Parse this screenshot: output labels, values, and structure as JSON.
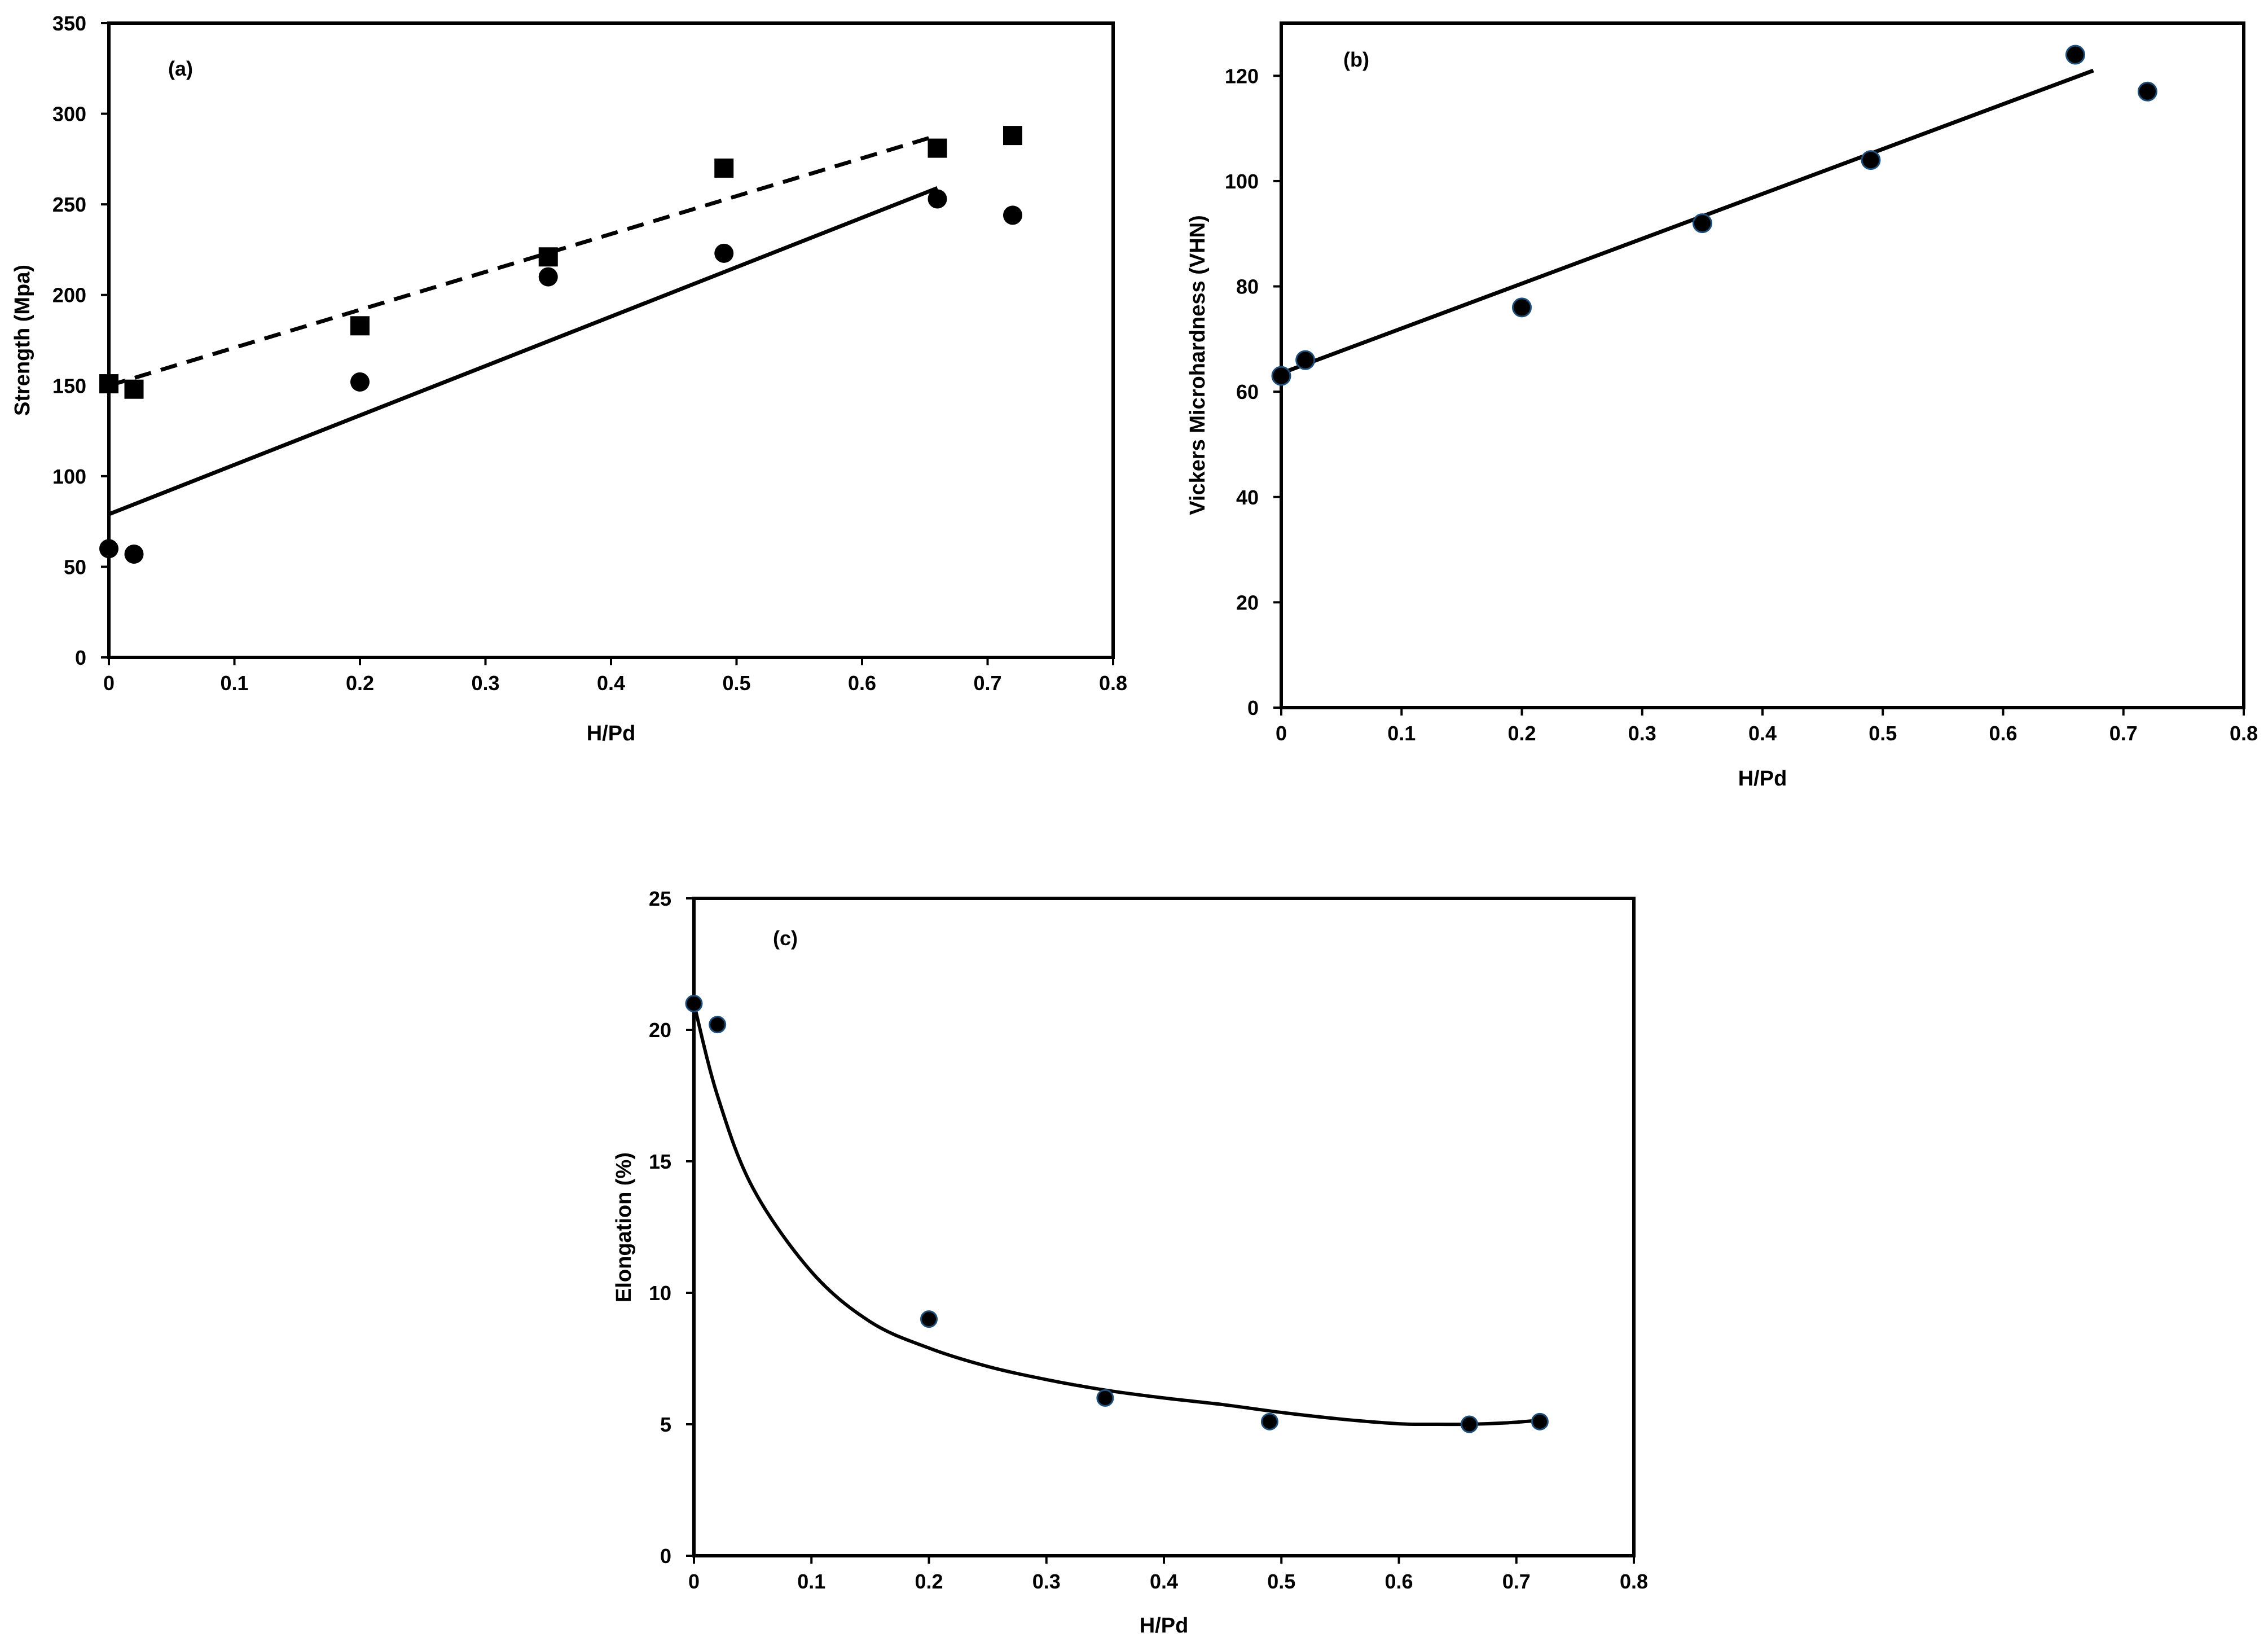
{
  "chart_data": [
    {
      "type": "scatter",
      "panel_label": "(a)",
      "xlabel": "H/Pd",
      "ylabel": "Strength (Mpa)",
      "xlim": [
        0,
        0.8
      ],
      "ylim": [
        0,
        350
      ],
      "x_ticks": [
        "0",
        "0.1",
        "0.2",
        "0.3",
        "0.4",
        "0.5",
        "0.6",
        "0.7",
        "0.8"
      ],
      "y_ticks": [
        "0",
        "50",
        "100",
        "150",
        "200",
        "250",
        "300",
        "350"
      ],
      "grid": false,
      "series": [
        {
          "marker": "square",
          "color": "#000000",
          "x": [
            0,
            0.02,
            0.2,
            0.35,
            0.49,
            0.66,
            0.72
          ],
          "y": [
            151,
            148,
            183,
            221,
            270,
            281,
            288
          ]
        },
        {
          "marker": "circle",
          "color": "#000000",
          "x": [
            0,
            0.02,
            0.2,
            0.35,
            0.49,
            0.66,
            0.72
          ],
          "y": [
            60,
            57,
            152,
            210,
            223,
            253,
            244
          ]
        }
      ],
      "trendlines": [
        {
          "style": "dashed",
          "x": [
            0,
            0.66
          ],
          "y": [
            150,
            288
          ]
        },
        {
          "style": "solid",
          "x": [
            0,
            0.66
          ],
          "y": [
            79,
            259
          ]
        }
      ]
    },
    {
      "type": "scatter",
      "panel_label": "(b)",
      "xlabel": "H/Pd",
      "ylabel": "Vickers Microhardness (VHN)",
      "xlim": [
        0,
        0.8
      ],
      "ylim": [
        0,
        130
      ],
      "x_ticks": [
        "0",
        "0.1",
        "0.2",
        "0.3",
        "0.4",
        "0.5",
        "0.6",
        "0.7",
        "0.8"
      ],
      "y_ticks": [
        "0",
        "20",
        "40",
        "60",
        "80",
        "100",
        "120"
      ],
      "grid": false,
      "series": [
        {
          "marker": "circle",
          "color": "#000000",
          "edge_color": "#1f4e79",
          "x": [
            0,
            0.02,
            0.2,
            0.35,
            0.49,
            0.66,
            0.72
          ],
          "y": [
            63,
            66,
            76,
            92,
            104,
            124,
            117
          ]
        }
      ],
      "trendlines": [
        {
          "style": "solid",
          "x": [
            0,
            0.675
          ],
          "y": [
            63.5,
            121
          ]
        }
      ]
    },
    {
      "type": "scatter",
      "panel_label": "(c)",
      "xlabel": "H/Pd",
      "ylabel": "Elongation (%)",
      "xlim": [
        0,
        0.8
      ],
      "ylim": [
        0,
        25
      ],
      "x_ticks": [
        "0",
        "0.1",
        "0.2",
        "0.3",
        "0.4",
        "0.5",
        "0.6",
        "0.7",
        "0.8"
      ],
      "y_ticks": [
        "0",
        "5",
        "10",
        "15",
        "20",
        "25"
      ],
      "grid": false,
      "series": [
        {
          "marker": "circle",
          "color": "#000000",
          "edge_color": "#1f4e79",
          "x": [
            0,
            0.02,
            0.2,
            0.35,
            0.49,
            0.66,
            0.72
          ],
          "y": [
            21,
            20.2,
            9,
            6,
            5.1,
            5,
            5.1
          ]
        }
      ],
      "trendlines": [
        {
          "style": "smooth",
          "x": [
            0,
            0.02,
            0.05,
            0.1,
            0.15,
            0.2,
            0.25,
            0.3,
            0.35,
            0.4,
            0.45,
            0.5,
            0.55,
            0.6,
            0.63,
            0.66,
            0.69,
            0.72
          ],
          "y": [
            21,
            17.5,
            14,
            10.8,
            8.9,
            7.9,
            7.2,
            6.7,
            6.3,
            6.0,
            5.75,
            5.45,
            5.2,
            5.02,
            5.0,
            5.0,
            5.05,
            5.15
          ]
        }
      ]
    }
  ]
}
